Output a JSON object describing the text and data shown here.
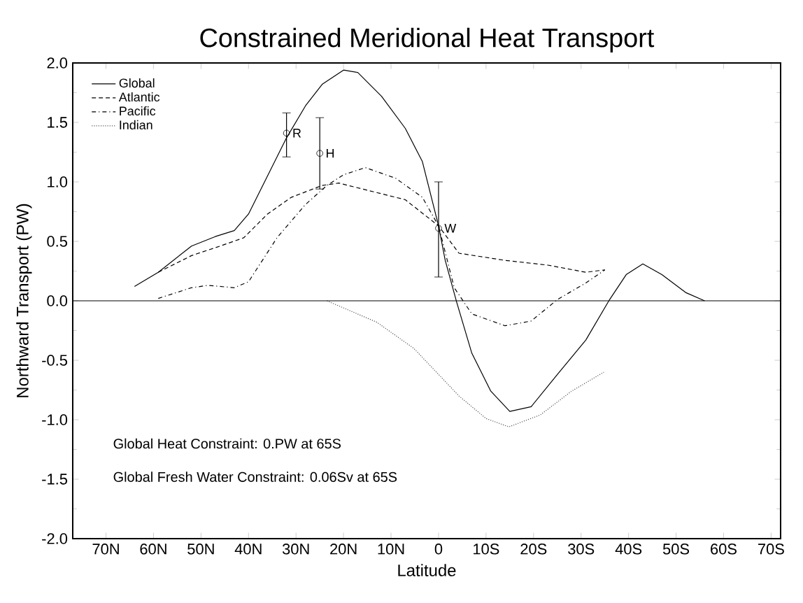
{
  "chart_data": {
    "type": "line",
    "title": "Constrained Meridional Heat Transport",
    "xlabel": "Latitude",
    "ylabel": "Northward Transport (PW)",
    "xlim": [
      77,
      -72
    ],
    "ylim": [
      -2.0,
      2.0
    ],
    "xticks": [
      {
        "value": 70,
        "label": "70N"
      },
      {
        "value": 60,
        "label": "60N"
      },
      {
        "value": 50,
        "label": "50N"
      },
      {
        "value": 40,
        "label": "40N"
      },
      {
        "value": 30,
        "label": "30N"
      },
      {
        "value": 20,
        "label": "20N"
      },
      {
        "value": 10,
        "label": "10N"
      },
      0,
      {
        "value": -10,
        "label": "10S"
      },
      {
        "value": -20,
        "label": "20S"
      },
      {
        "value": -30,
        "label": "30S"
      },
      {
        "value": -40,
        "label": "40S"
      },
      {
        "value": -50,
        "label": "50S"
      },
      {
        "value": -60,
        "label": "60S"
      },
      {
        "value": -70,
        "label": "70S"
      }
    ],
    "yticks": [
      {
        "value": -2.0,
        "label": "-2.0"
      },
      {
        "value": -1.5,
        "label": "-1.5"
      },
      {
        "value": -1.0,
        "label": "-1.0"
      },
      {
        "value": -0.5,
        "label": "-0.5"
      },
      {
        "value": 0.0,
        "label": "0.0"
      },
      {
        "value": 0.5,
        "label": "0.5"
      },
      {
        "value": 1.0,
        "label": "1.0"
      },
      {
        "value": 1.5,
        "label": "1.5"
      },
      {
        "value": 2.0,
        "label": "2.0"
      }
    ],
    "legend": "top left",
    "grid": false,
    "marker": "none",
    "ref_lines": [
      {
        "axis": "y",
        "value": 0
      }
    ],
    "series": [
      {
        "name": "Global",
        "color": "#000000",
        "line_style": "solid",
        "x": [
          64,
          59,
          52,
          47,
          43,
          40,
          36,
          32,
          28,
          24.5,
          20,
          17,
          12,
          7,
          3.4,
          0,
          -1.4,
          -3.8,
          -7,
          -11,
          -15,
          -19.5,
          -25,
          -31,
          -36,
          -39.5,
          -43,
          -47,
          -52,
          -56
        ],
        "values": [
          0.12,
          0.24,
          0.46,
          0.54,
          0.59,
          0.73,
          1.05,
          1.37,
          1.64,
          1.82,
          1.94,
          1.92,
          1.72,
          1.45,
          1.17,
          0.63,
          0.34,
          -0.01,
          -0.44,
          -0.76,
          -0.93,
          -0.89,
          -0.62,
          -0.33,
          0.01,
          0.22,
          0.31,
          0.22,
          0.07,
          0.0
        ]
      },
      {
        "name": "Atlantic",
        "color": "#000000",
        "line_style": "dashed",
        "x": [
          59,
          52,
          46,
          41,
          36,
          31,
          24.5,
          21,
          15,
          7,
          0,
          -4.3,
          -14,
          -23,
          -31,
          -35
        ],
        "values": [
          0.24,
          0.38,
          0.46,
          0.53,
          0.73,
          0.87,
          0.97,
          0.99,
          0.93,
          0.85,
          0.63,
          0.4,
          0.34,
          0.3,
          0.24,
          0.26
        ]
      },
      {
        "name": "Pacific",
        "color": "#000000",
        "line_style": "dashdot",
        "x": [
          59,
          52,
          48.5,
          43,
          40,
          34,
          28,
          23.5,
          20,
          15.4,
          9,
          3.4,
          0,
          -3.3,
          -7,
          -14,
          -19.5,
          -25,
          -31,
          -35
        ],
        "values": [
          0.02,
          0.11,
          0.13,
          0.11,
          0.16,
          0.53,
          0.81,
          0.97,
          1.06,
          1.12,
          1.03,
          0.87,
          0.63,
          0.11,
          -0.11,
          -0.21,
          -0.17,
          0.01,
          0.15,
          0.26
        ]
      },
      {
        "name": "Indian",
        "color": "#555555",
        "line_style": "dotted",
        "x": [
          23.5,
          13,
          5.2,
          -4.3,
          -10,
          -14.8,
          -21.4,
          -28,
          -34.8
        ],
        "values": [
          0.0,
          -0.18,
          -0.4,
          -0.8,
          -0.99,
          -1.06,
          -0.96,
          -0.76,
          -0.6
        ]
      },
      {
        "type": "scatter",
        "marker": "circle",
        "color": "#000000",
        "x": [
          32,
          25,
          0
        ],
        "values": [
          1.41,
          1.24,
          0.61
        ],
        "errors": [
          [
            1.21,
            1.58
          ],
          [
            0.94,
            1.54
          ],
          [
            0.2,
            1.0
          ]
        ]
      }
    ],
    "annotations": [
      {
        "text": "R",
        "x": 32,
        "y": 1.41
      },
      {
        "text": "H",
        "x": 25,
        "y": 1.24
      },
      {
        "text": "W",
        "x": 0,
        "y": 0.61
      },
      "Global Heat Constraint: 0.PW at 65S",
      "Global Fresh Water Constraint: 0.06Sv at 65S"
    ]
  }
}
